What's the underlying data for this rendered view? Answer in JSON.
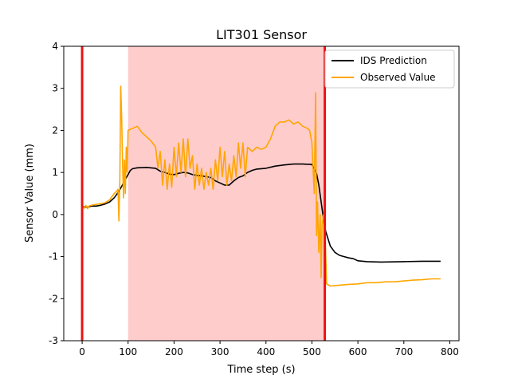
{
  "chart_data": {
    "type": "line",
    "title": "LIT301 Sensor",
    "xlabel": "Time step (s)",
    "ylabel": "Sensor Value (mm)",
    "xlim": [
      -40,
      820
    ],
    "ylim": [
      -3,
      4
    ],
    "xticks": [
      0,
      100,
      200,
      300,
      400,
      500,
      600,
      700,
      800
    ],
    "yticks": [
      -3,
      -2,
      -1,
      0,
      1,
      2,
      3,
      4
    ],
    "legend_position": "top-right",
    "shaded_region": {
      "x_start": 100,
      "x_end": 528,
      "color": "#ffcccc"
    },
    "vertical_lines": [
      {
        "x": 0,
        "color": "#ee1111"
      },
      {
        "x": 528,
        "color": "#ee1111"
      }
    ],
    "series": [
      {
        "name": "IDS Prediction",
        "color": "#000000",
        "points": [
          [
            0,
            0.19
          ],
          [
            10,
            0.17
          ],
          [
            20,
            0.2
          ],
          [
            30,
            0.2
          ],
          [
            40,
            0.22
          ],
          [
            50,
            0.25
          ],
          [
            60,
            0.3
          ],
          [
            70,
            0.4
          ],
          [
            80,
            0.55
          ],
          [
            90,
            0.75
          ],
          [
            95,
            0.85
          ],
          [
            100,
            0.95
          ],
          [
            105,
            1.05
          ],
          [
            110,
            1.09
          ],
          [
            120,
            1.11
          ],
          [
            140,
            1.12
          ],
          [
            160,
            1.1
          ],
          [
            170,
            1.03
          ],
          [
            180,
            1.0
          ],
          [
            190,
            0.96
          ],
          [
            200,
            0.95
          ],
          [
            210,
            0.98
          ],
          [
            220,
            1.0
          ],
          [
            230,
            0.99
          ],
          [
            240,
            0.95
          ],
          [
            250,
            0.93
          ],
          [
            260,
            0.92
          ],
          [
            270,
            0.9
          ],
          [
            280,
            0.88
          ],
          [
            290,
            0.8
          ],
          [
            300,
            0.75
          ],
          [
            310,
            0.7
          ],
          [
            320,
            0.7
          ],
          [
            330,
            0.8
          ],
          [
            340,
            0.88
          ],
          [
            350,
            0.92
          ],
          [
            360,
            1.0
          ],
          [
            370,
            1.05
          ],
          [
            380,
            1.08
          ],
          [
            400,
            1.1
          ],
          [
            420,
            1.15
          ],
          [
            440,
            1.18
          ],
          [
            460,
            1.2
          ],
          [
            480,
            1.2
          ],
          [
            500,
            1.19
          ],
          [
            505,
            1.1
          ],
          [
            510,
            0.98
          ],
          [
            515,
            0.7
          ],
          [
            520,
            0.3
          ],
          [
            525,
            -0.1
          ],
          [
            530,
            -0.4
          ],
          [
            540,
            -0.75
          ],
          [
            550,
            -0.9
          ],
          [
            560,
            -0.97
          ],
          [
            570,
            -1.0
          ],
          [
            580,
            -1.03
          ],
          [
            590,
            -1.05
          ],
          [
            600,
            -1.1
          ],
          [
            620,
            -1.12
          ],
          [
            650,
            -1.13
          ],
          [
            700,
            -1.12
          ],
          [
            740,
            -1.11
          ],
          [
            780,
            -1.11
          ]
        ]
      },
      {
        "name": "Observed Value",
        "color": "#ffa500",
        "points": [
          [
            0,
            0.2
          ],
          [
            5,
            0.15
          ],
          [
            8,
            0.22
          ],
          [
            12,
            0.14
          ],
          [
            15,
            0.2
          ],
          [
            20,
            0.22
          ],
          [
            30,
            0.24
          ],
          [
            40,
            0.26
          ],
          [
            50,
            0.28
          ],
          [
            60,
            0.35
          ],
          [
            70,
            0.5
          ],
          [
            75,
            0.55
          ],
          [
            78,
            0.6
          ],
          [
            80,
            -0.15
          ],
          [
            82,
            0.8
          ],
          [
            84,
            3.05
          ],
          [
            86,
            2.3
          ],
          [
            88,
            1.2
          ],
          [
            90,
            0.4
          ],
          [
            92,
            1.3
          ],
          [
            94,
            0.5
          ],
          [
            96,
            1.6
          ],
          [
            98,
            1.0
          ],
          [
            100,
            2.0
          ],
          [
            110,
            2.05
          ],
          [
            120,
            2.1
          ],
          [
            130,
            1.95
          ],
          [
            140,
            1.85
          ],
          [
            150,
            1.75
          ],
          [
            160,
            1.6
          ],
          [
            165,
            1.1
          ],
          [
            170,
            1.5
          ],
          [
            175,
            0.7
          ],
          [
            180,
            1.3
          ],
          [
            185,
            0.6
          ],
          [
            190,
            1.2
          ],
          [
            195,
            0.65
          ],
          [
            200,
            1.6
          ],
          [
            205,
            0.9
          ],
          [
            210,
            1.7
          ],
          [
            215,
            1.0
          ],
          [
            220,
            1.8
          ],
          [
            225,
            0.9
          ],
          [
            230,
            1.8
          ],
          [
            235,
            1.1
          ],
          [
            240,
            1.4
          ],
          [
            245,
            0.6
          ],
          [
            250,
            1.2
          ],
          [
            255,
            0.7
          ],
          [
            260,
            1.1
          ],
          [
            265,
            0.6
          ],
          [
            270,
            1.0
          ],
          [
            275,
            0.7
          ],
          [
            280,
            1.1
          ],
          [
            285,
            0.6
          ],
          [
            290,
            1.3
          ],
          [
            295,
            0.8
          ],
          [
            300,
            1.6
          ],
          [
            305,
            0.9
          ],
          [
            310,
            1.5
          ],
          [
            315,
            0.7
          ],
          [
            320,
            1.2
          ],
          [
            325,
            0.8
          ],
          [
            330,
            1.4
          ],
          [
            335,
            0.9
          ],
          [
            340,
            1.7
          ],
          [
            345,
            1.1
          ],
          [
            350,
            1.7
          ],
          [
            355,
            0.9
          ],
          [
            360,
            1.6
          ],
          [
            370,
            1.5
          ],
          [
            380,
            1.6
          ],
          [
            390,
            1.55
          ],
          [
            400,
            1.6
          ],
          [
            410,
            1.8
          ],
          [
            420,
            2.1
          ],
          [
            430,
            2.2
          ],
          [
            440,
            2.2
          ],
          [
            450,
            2.25
          ],
          [
            460,
            2.15
          ],
          [
            470,
            2.2
          ],
          [
            480,
            2.1
          ],
          [
            490,
            2.05
          ],
          [
            495,
            2.0
          ],
          [
            500,
            1.7
          ],
          [
            505,
            0.5
          ],
          [
            508,
            2.9
          ],
          [
            510,
            -0.5
          ],
          [
            512,
            0.3
          ],
          [
            515,
            -0.9
          ],
          [
            518,
            0.0
          ],
          [
            520,
            -1.5
          ],
          [
            522,
            -0.3
          ],
          [
            525,
            0.0
          ],
          [
            528,
            -0.3
          ],
          [
            532,
            -1.65
          ],
          [
            540,
            -1.7
          ],
          [
            560,
            -1.68
          ],
          [
            580,
            -1.66
          ],
          [
            600,
            -1.65
          ],
          [
            620,
            -1.62
          ],
          [
            640,
            -1.62
          ],
          [
            660,
            -1.6
          ],
          [
            680,
            -1.6
          ],
          [
            700,
            -1.58
          ],
          [
            720,
            -1.56
          ],
          [
            740,
            -1.55
          ],
          [
            760,
            -1.53
          ],
          [
            780,
            -1.53
          ]
        ]
      }
    ]
  }
}
